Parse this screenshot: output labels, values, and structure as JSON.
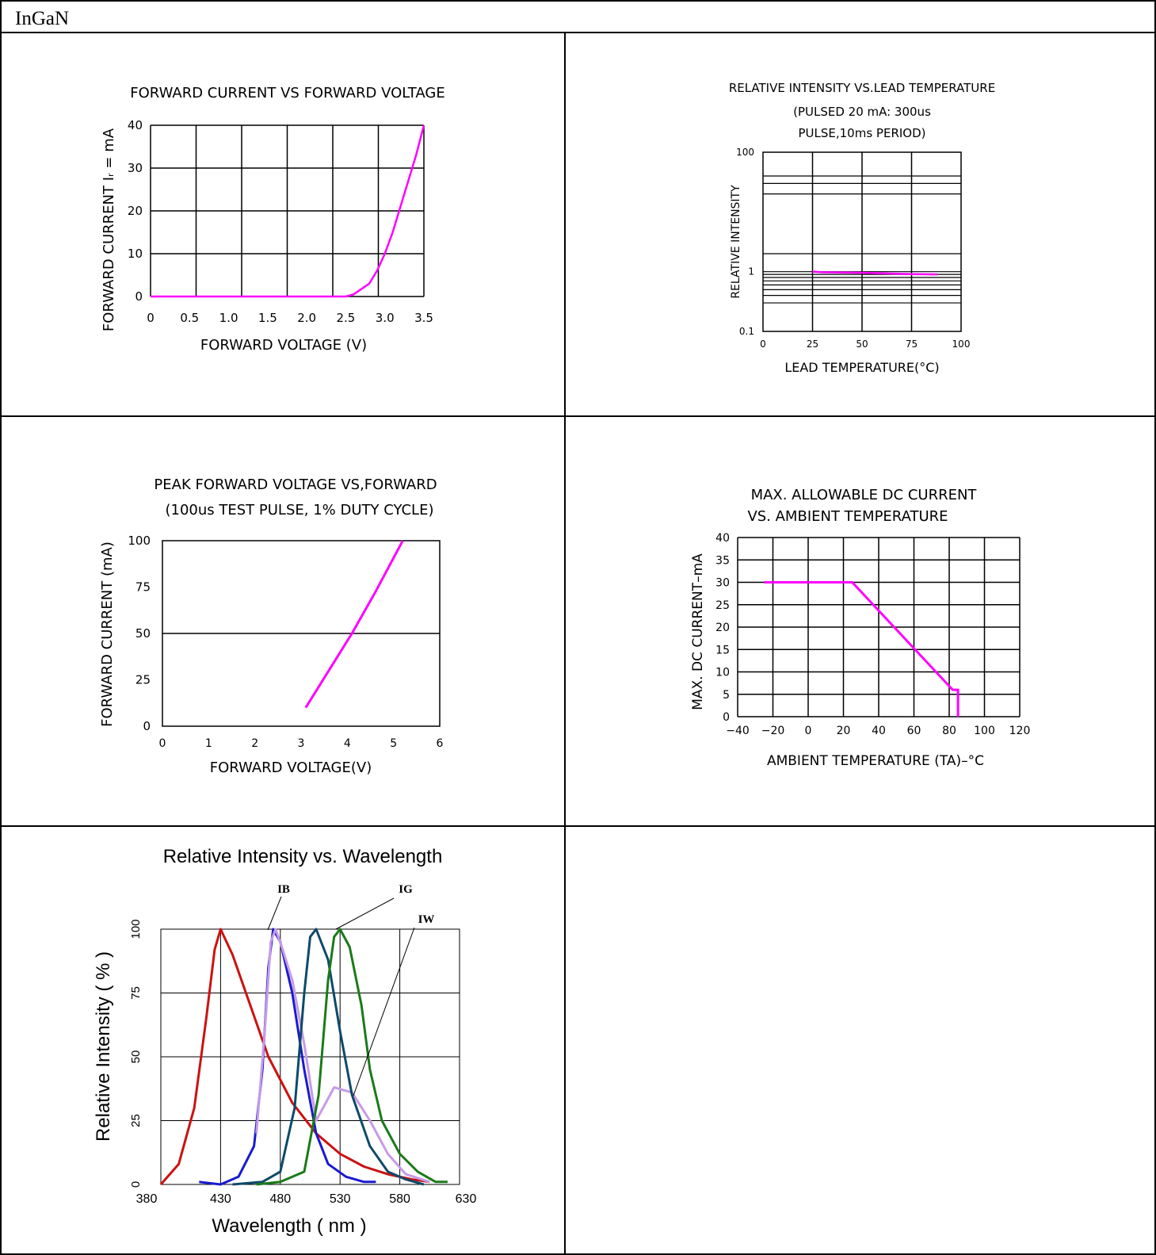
{
  "header": {
    "title": "InGaN"
  },
  "colors": {
    "curve": "#ff00ff",
    "red": "#cc1111",
    "blue": "#1a1ad0",
    "teal": "#0d4a6a",
    "green": "#1a7a1a",
    "lavender": "#c79be8"
  },
  "chart_data": [
    {
      "type": "line",
      "title": "FORWARD CURRENT VS FORWARD VOLTAGE",
      "xlabel": "FORWARD VOLTAGE (V)",
      "ylabel": "FORWARD CURRENT Iᵣ = mA",
      "x_ticks": [
        "0",
        "0.5",
        "1.0",
        "1.5",
        "2.0",
        "2.5",
        "3.0",
        "3.5"
      ],
      "y_ticks": [
        "0",
        "10",
        "20",
        "30",
        "40"
      ],
      "xlim": [
        0,
        3.5
      ],
      "ylim": [
        0,
        40
      ],
      "grid": true,
      "series": [
        {
          "x": [
            0,
            2.5,
            2.6,
            2.8,
            2.9,
            3.0,
            3.1,
            3.2,
            3.3,
            3.4,
            3.5
          ],
          "y": [
            0,
            0,
            0.5,
            3,
            6,
            10,
            15,
            21,
            27,
            33,
            40
          ]
        }
      ]
    },
    {
      "type": "line",
      "title": "RELATIVE INTENSITY VS.LEAD TEMPERATURE",
      "subtitle": [
        "(PULSED 20 mA: 300us",
        "PULSE,10ms PERIOD)"
      ],
      "xlabel": "LEAD TEMPERATURE(°C)",
      "ylabel": "RELATIVE INTENSITY",
      "x_ticks": [
        "0",
        "25",
        "50",
        "75",
        "100"
      ],
      "y_ticks": [
        "0.1",
        "1",
        "100"
      ],
      "xlim": [
        0,
        100
      ],
      "ylim": [
        0.1,
        100
      ],
      "yscale": "log",
      "grid": true,
      "series": [
        {
          "x": [
            25,
            30,
            50,
            60,
            75,
            88
          ],
          "y": [
            1.0,
            0.98,
            0.96,
            0.94,
            0.91,
            0.9
          ]
        }
      ]
    },
    {
      "type": "line",
      "title": "PEAK FORWARD VOLTAGE VS,FORWARD",
      "subtitle": "(100us TEST PULSE, 1% DUTY CYCLE)",
      "xlabel": "FORWARD VOLTAGE(V)",
      "ylabel": "FORWARD CURRENT (mA)",
      "x_ticks": [
        "0",
        "1",
        "2",
        "3",
        "4",
        "5",
        "6"
      ],
      "y_ticks": [
        "0",
        "25",
        "50",
        "75",
        "100"
      ],
      "xlim": [
        0,
        6
      ],
      "ylim": [
        0,
        100
      ],
      "grid": "y-50 only",
      "series": [
        {
          "x": [
            3.1,
            3.6,
            4.1,
            4.6,
            5.2
          ],
          "y": [
            10,
            30,
            50,
            72,
            100
          ]
        }
      ]
    },
    {
      "type": "line",
      "title": [
        "MAX. ALLOWABLE DC CURRENT",
        "VS. AMBIENT TEMPERATURE"
      ],
      "xlabel": "AMBIENT TEMPERATURE (TA)–°C",
      "ylabel": "MAX. DC CURRENT–mA",
      "x_ticks": [
        "−40",
        "−20",
        "0",
        "20",
        "40",
        "60",
        "80",
        "100",
        "120"
      ],
      "y_ticks": [
        "0",
        "5",
        "10",
        "15",
        "20",
        "25",
        "30",
        "35",
        "40"
      ],
      "xlim": [
        -40,
        120
      ],
      "ylim": [
        0,
        40
      ],
      "grid": true,
      "series": [
        {
          "x": [
            -25,
            25,
            82,
            85,
            85
          ],
          "y": [
            30,
            30,
            6,
            6,
            0
          ]
        }
      ]
    },
    {
      "type": "line",
      "title": "Relative Intensity vs. Wavelength",
      "xlabel": "Wavelength ( nm )",
      "ylabel": "Relative Intensity ( % )",
      "x_ticks": [
        "380",
        "430",
        "480",
        "530",
        "580",
        "630"
      ],
      "y_ticks": [
        "0",
        "25",
        "50",
        "75",
        "100"
      ],
      "xlim": [
        380,
        630
      ],
      "ylim": [
        0,
        100
      ],
      "grid": true,
      "annotations": [
        "IB",
        "IG",
        "IW"
      ],
      "series": [
        {
          "color": "red",
          "x": [
            380,
            395,
            408,
            418,
            425,
            430,
            440,
            455,
            470,
            490,
            510,
            530,
            550,
            570,
            590,
            605
          ],
          "y": [
            0,
            8,
            30,
            65,
            92,
            100,
            90,
            70,
            50,
            32,
            20,
            12,
            7,
            4,
            2,
            1
          ]
        },
        {
          "color": "blue",
          "x": [
            412,
            430,
            445,
            458,
            465,
            470,
            474,
            480,
            490,
            500,
            510,
            520,
            535,
            550,
            560
          ],
          "y": [
            1,
            0,
            3,
            15,
            45,
            85,
            100,
            95,
            75,
            45,
            20,
            8,
            3,
            1,
            1
          ]
        },
        {
          "color": "lavender",
          "x": [
            460,
            467,
            472,
            476,
            482,
            490,
            500,
            510,
            525,
            540,
            555,
            570,
            585,
            605
          ],
          "y": [
            20,
            60,
            95,
            100,
            92,
            80,
            55,
            25,
            38,
            36,
            25,
            12,
            4,
            1
          ]
        },
        {
          "color": "teal",
          "x": [
            440,
            465,
            480,
            492,
            500,
            505,
            510,
            520,
            530,
            540,
            555,
            570,
            585,
            600
          ],
          "y": [
            0,
            1,
            5,
            30,
            75,
            97,
            100,
            88,
            60,
            35,
            15,
            5,
            2,
            0
          ]
        },
        {
          "color": "green",
          "x": [
            460,
            480,
            500,
            512,
            520,
            525,
            530,
            538,
            548,
            555,
            565,
            580,
            595,
            610,
            620
          ],
          "y": [
            0,
            1,
            5,
            35,
            80,
            97,
            100,
            93,
            70,
            45,
            25,
            12,
            5,
            1,
            1
          ]
        }
      ]
    }
  ]
}
